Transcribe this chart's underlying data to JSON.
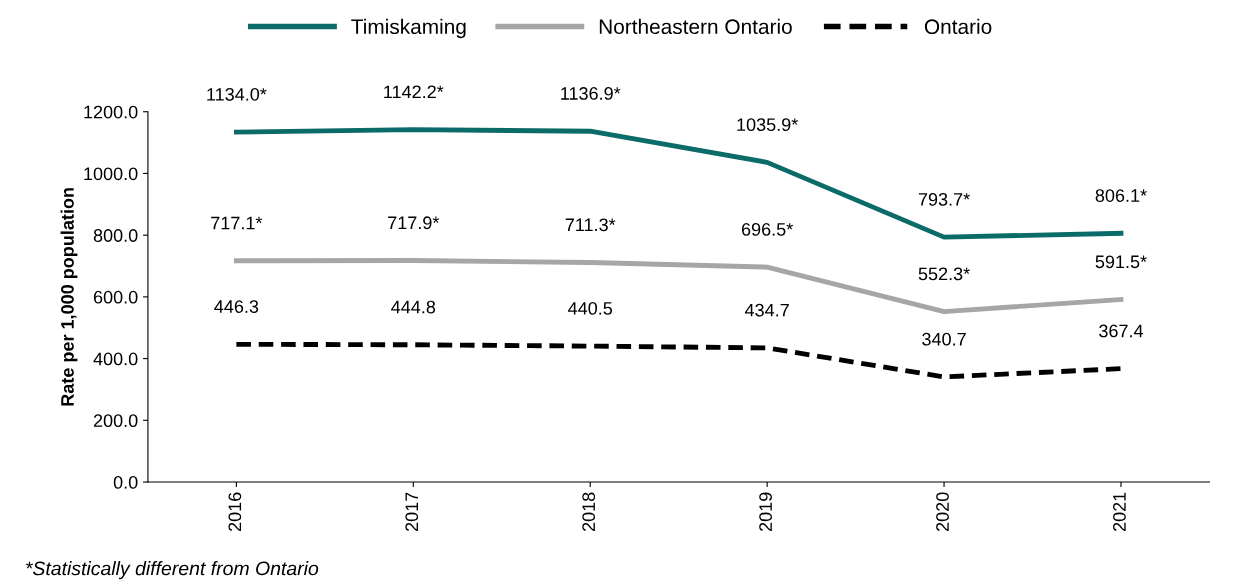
{
  "chart_data": {
    "type": "line",
    "ylabel": "Rate per 1,000 population",
    "categories": [
      "2016",
      "2017",
      "2018",
      "2019",
      "2020",
      "2021"
    ],
    "series": [
      {
        "name": "Timiskaming",
        "color": "#0b6b68",
        "line_style": "solid",
        "values": [
          1134.0,
          1142.2,
          1136.9,
          1035.9,
          793.7,
          806.1
        ],
        "value_labels": [
          "1134.0*",
          "1142.2*",
          "1136.9*",
          "1035.9*",
          "793.7*",
          "806.1*"
        ]
      },
      {
        "name": "Northeastern Ontario",
        "color": "#a6a6a6",
        "line_style": "solid",
        "values": [
          717.1,
          717.9,
          711.3,
          696.5,
          552.3,
          591.5
        ],
        "value_labels": [
          "717.1*",
          "717.9*",
          "711.3*",
          "696.5*",
          "552.3*",
          "591.5*"
        ]
      },
      {
        "name": "Ontario",
        "color": "#000000",
        "line_style": "dashed",
        "values": [
          446.3,
          444.8,
          440.5,
          434.7,
          340.7,
          367.4
        ],
        "value_labels": [
          "446.3",
          "444.8",
          "440.5",
          "434.7",
          "340.7",
          "367.4"
        ]
      }
    ],
    "ylim": [
      0,
      1200
    ],
    "yticks": [
      {
        "value": 0,
        "label": "0.0"
      },
      {
        "value": 200,
        "label": "200.0"
      },
      {
        "value": 400,
        "label": "400.0"
      },
      {
        "value": 600,
        "label": "600.0"
      },
      {
        "value": 800,
        "label": "800.0"
      },
      {
        "value": 1000,
        "label": "1000.0"
      },
      {
        "value": 1200,
        "label": "1200.0"
      }
    ],
    "grid": false,
    "legend": "top",
    "marker": "none",
    "annotations": [
      "*Statistically different from Ontario"
    ]
  }
}
